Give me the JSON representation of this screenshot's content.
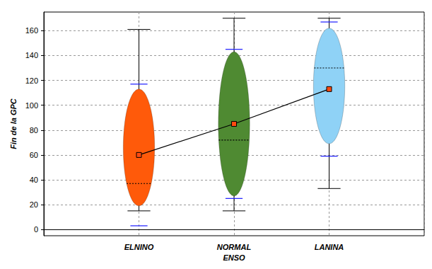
{
  "chart_data": {
    "type": "ellipse",
    "y_label": "Fin de la GPC",
    "x_label": "ENSO",
    "categories": [
      null,
      "ELNINO",
      "NORMAL",
      "LANINA",
      null
    ],
    "colors": [
      null,
      "#ff5a0a",
      "#4f8a32",
      "#8fd2f6",
      null
    ],
    "mean": [
      null,
      60,
      85,
      113,
      null
    ],
    "median": [
      null,
      37,
      72,
      130,
      null
    ],
    "whisker_low": [
      null,
      15,
      15,
      33,
      null
    ],
    "whisker_high": [
      null,
      161,
      170,
      170,
      null
    ],
    "ellipse_low": [
      null,
      19,
      27,
      69,
      null
    ],
    "ellipse_high": [
      null,
      113,
      143,
      162,
      null
    ],
    "blue_low": [
      null,
      3,
      25,
      59,
      null
    ],
    "blue_high": [
      null,
      117,
      145,
      167,
      null
    ],
    "ylim": [
      -5,
      175
    ],
    "yticks": [
      0,
      20,
      40,
      60,
      80,
      100,
      120,
      140,
      160
    ],
    "grid": true
  }
}
